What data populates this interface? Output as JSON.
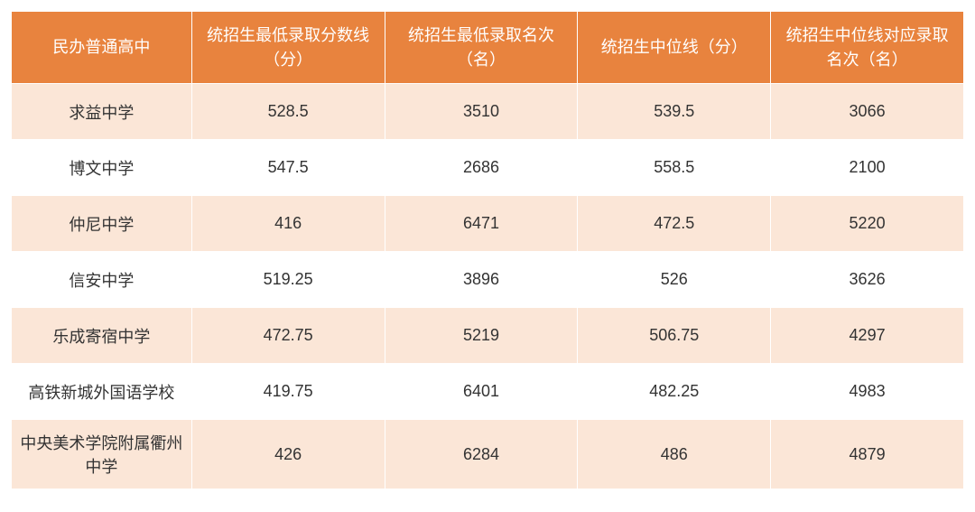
{
  "table": {
    "header_bg_color": "#e8833e",
    "header_text_color": "#ffffff",
    "row_odd_bg_color": "#fbe6d7",
    "row_even_bg_color": "#ffffff",
    "border_color": "#ffffff",
    "cell_text_color": "#333333",
    "header_fontsize": 18,
    "cell_fontsize": 18,
    "columns": [
      "民办普通高中",
      "统招生最低录取分数线（分）",
      "统招生最低录取名次（名）",
      "统招生中位线（分）",
      "统招生中位线对应录取名次（名）"
    ],
    "rows": [
      {
        "school": "求益中学",
        "min_score": "528.5",
        "min_rank": "3510",
        "median_score": "539.5",
        "median_rank": "3066"
      },
      {
        "school": "博文中学",
        "min_score": "547.5",
        "min_rank": "2686",
        "median_score": "558.5",
        "median_rank": "2100"
      },
      {
        "school": "仲尼中学",
        "min_score": "416",
        "min_rank": "6471",
        "median_score": "472.5",
        "median_rank": "5220"
      },
      {
        "school": "信安中学",
        "min_score": "519.25",
        "min_rank": "3896",
        "median_score": "526",
        "median_rank": "3626"
      },
      {
        "school": "乐成寄宿中学",
        "min_score": "472.75",
        "min_rank": "5219",
        "median_score": "506.75",
        "median_rank": "4297"
      },
      {
        "school": "高铁新城外国语学校",
        "min_score": "419.75",
        "min_rank": "6401",
        "median_score": "482.25",
        "median_rank": "4983"
      },
      {
        "school": "中央美术学院附属衢州中学",
        "min_score": "426",
        "min_rank": "6284",
        "median_score": "486",
        "median_rank": "4879"
      }
    ]
  }
}
